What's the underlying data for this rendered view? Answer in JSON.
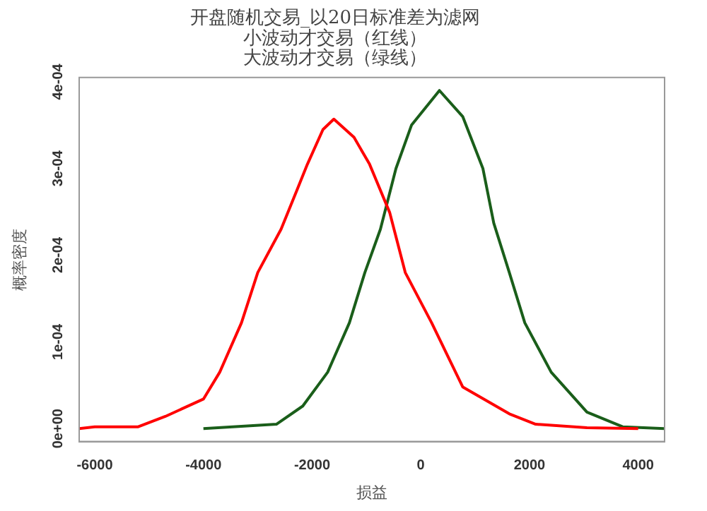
{
  "chart_data": {
    "type": "line",
    "title": "开盘随机交易_以20日标准差为滤网",
    "subtitle": "小波动才交易（红线）",
    "annotations": [
      "大波动才交易（绿线）"
    ],
    "xlabel": "损益",
    "ylabel": "概率密度",
    "xlim": [
      -6286,
      4486
    ],
    "xticks": [
      -6000,
      -4000,
      -2000,
      0,
      2000,
      4000
    ],
    "ylim": [
      -1.5e-05,
      0.000405
    ],
    "yticks": [
      {
        "value": 0,
        "label": "0e+00"
      },
      {
        "value": 0.0001,
        "label": "1e-04"
      },
      {
        "value": 0.0002,
        "label": "2e-04"
      },
      {
        "value": 0.0003,
        "label": "3e-04"
      },
      {
        "value": 0.0004,
        "label": "4e-04"
      }
    ],
    "grid": false,
    "legend": false,
    "marker": "none",
    "line_style": "solid",
    "series": [
      {
        "color": "#ff0000",
        "x": [
          -6286,
          -6000,
          -5200,
          -4700,
          -4000,
          -3700,
          -3300,
          -3000,
          -2571,
          -2286,
          -2086,
          -1800,
          -1600,
          -1229,
          -943,
          -571,
          -286,
          200,
          771,
          1629,
          2114,
          3057,
          4000
        ],
        "values": [
          0,
          2e-06,
          2e-06,
          1.4e-05,
          3.4e-05,
          6.5e-05,
          0.000122,
          0.00018,
          0.00023,
          0.000274,
          0.000305,
          0.000345,
          0.000357,
          0.000336,
          0.000305,
          0.000249,
          0.00018,
          0.000122,
          4.8e-05,
          1.7e-05,
          5e-06,
          1e-06,
          0
        ]
      },
      {
        "color": "#1a5e1a",
        "x": [
          -4000,
          -2657,
          -2171,
          -1714,
          -1314,
          -1029,
          -743,
          -457,
          -171,
          343,
          771,
          1143,
          1343,
          1629,
          1914,
          2400,
          3057,
          3714,
          4486
        ],
        "values": [
          0,
          5e-06,
          2.6e-05,
          6.5e-05,
          0.000122,
          0.00018,
          0.00023,
          0.0003,
          0.00035,
          0.00039,
          0.00036,
          0.0003,
          0.000237,
          0.00018,
          0.000122,
          6.5e-05,
          1.9e-05,
          2e-06,
          0
        ]
      }
    ]
  }
}
